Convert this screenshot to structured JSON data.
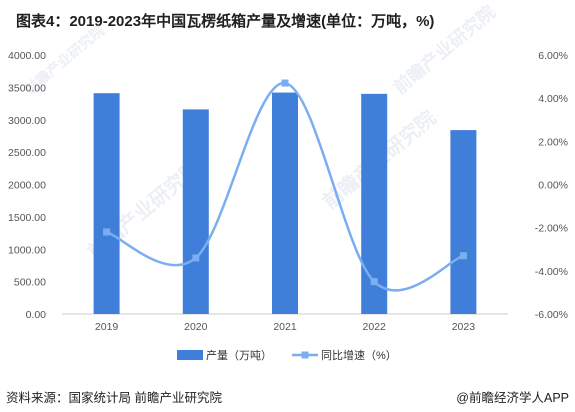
{
  "title": "图表4：2019-2023年中国瓦楞纸箱产量及增速(单位：万吨，%)",
  "source": "资料来源：国家统计局 前瞻产业研究院",
  "brand": "@前瞻经济学人APP",
  "watermark": "前瞻产业研究院",
  "colors": {
    "bar": "#3f7fd9",
    "line": "#7aaef0",
    "axis": "#cccccc"
  },
  "chart_data": {
    "type": "bar",
    "categories": [
      "2019",
      "2020",
      "2021",
      "2022",
      "2023"
    ],
    "series": [
      {
        "name": "产量（万吨）",
        "type": "bar",
        "axis": "left",
        "values": [
          3410,
          3160,
          3420,
          3400,
          2840
        ]
      },
      {
        "name": "同比增速（%）",
        "type": "line",
        "axis": "right",
        "values": [
          -2.2,
          -3.4,
          4.7,
          -4.5,
          -3.3
        ]
      }
    ],
    "ylim_left": [
      0,
      4000
    ],
    "ylim_right": [
      -6,
      6
    ],
    "yticks_left": [
      "0.00",
      "500.00",
      "1000.00",
      "1500.00",
      "2000.00",
      "2500.00",
      "3000.00",
      "3500.00",
      "4000.00"
    ],
    "yticks_right": [
      "-6.00%",
      "-4.00%",
      "-2.00%",
      "0.00%",
      "2.00%",
      "4.00%",
      "6.00%"
    ],
    "grid": false,
    "legend_position": "bottom"
  }
}
